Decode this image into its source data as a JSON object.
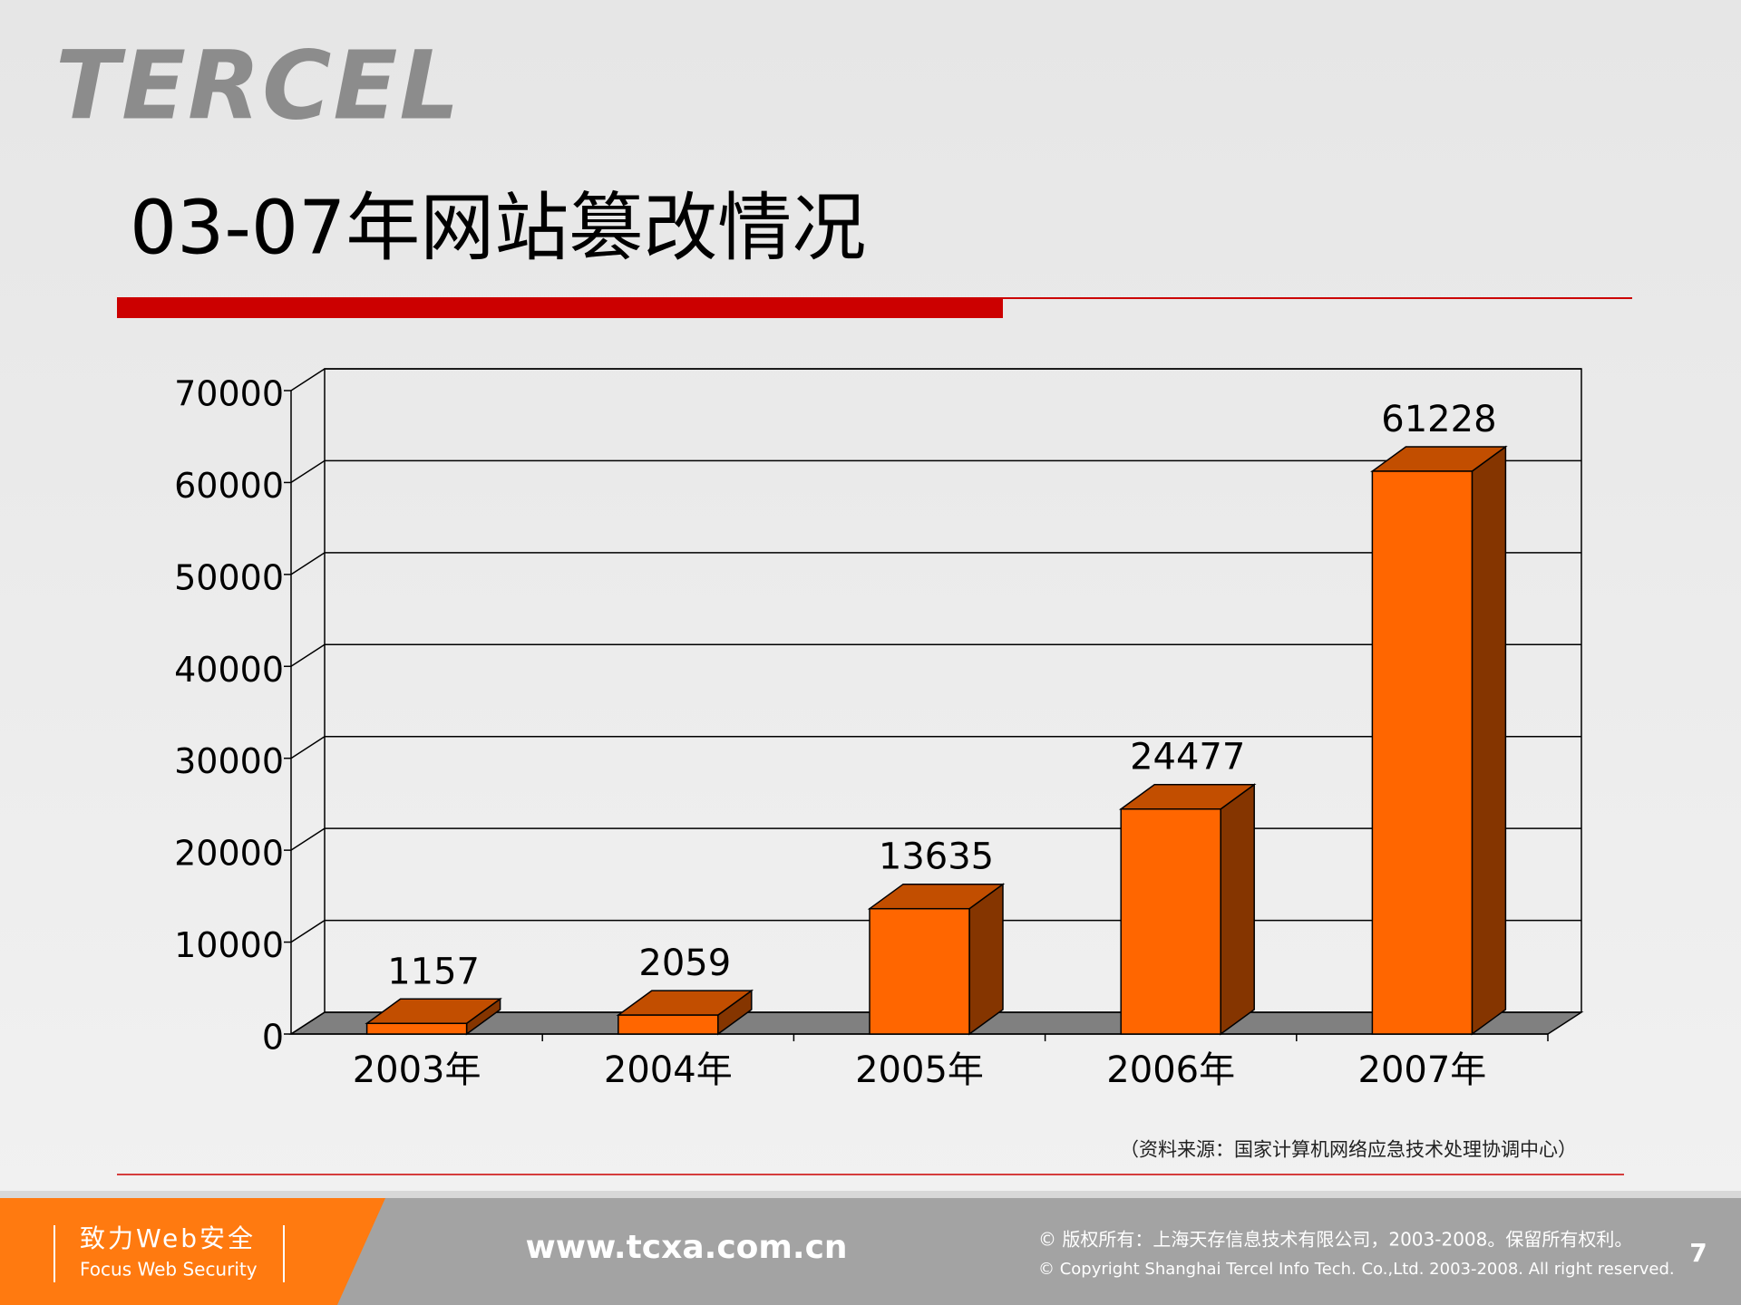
{
  "logo": "TERCEL",
  "chart_data": {
    "type": "bar3d",
    "title": "03-07年网站篡改情况",
    "categories": [
      "2003年",
      "2004年",
      "2005年",
      "2006年",
      "2007年"
    ],
    "values": [
      1157,
      2059,
      13635,
      24477,
      61228
    ],
    "color": "#ff6600",
    "ylim": [
      0,
      70000
    ],
    "yticks": [
      0,
      10000,
      20000,
      30000,
      40000,
      50000,
      60000,
      70000
    ],
    "grid": true
  },
  "source": "（资料来源：国家计算机网络应急技术处理协调中心）",
  "footer": {
    "slogan": "致力Web安全",
    "slogan_en": "Focus Web Security",
    "url": "www.tcxa.com.cn",
    "copyright_cn": "© 版权所有：上海天存信息技术有限公司，2003-2008。保留所有权利。",
    "copyright_en": "© Copyright Shanghai Tercel Info Tech. Co.,Ltd. 2003-2008. All right reserved.",
    "page": "7"
  }
}
